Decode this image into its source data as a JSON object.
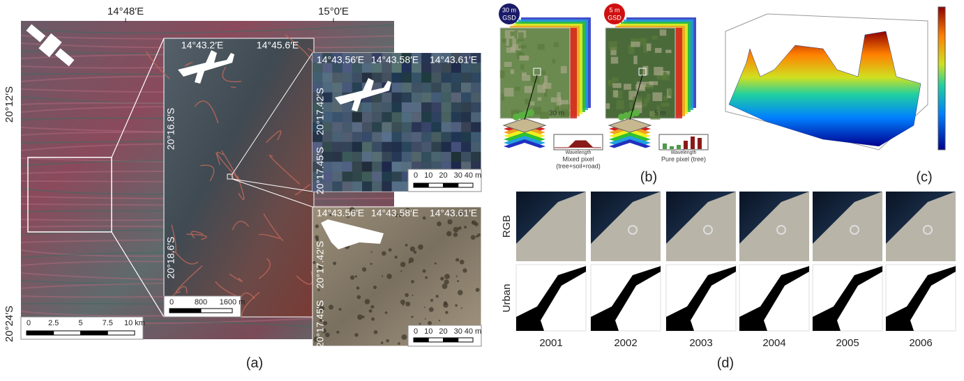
{
  "panels": {
    "a": {
      "label": "(a)",
      "overview": {
        "lon_labels": [
          "14°48′E",
          "15°0′E"
        ],
        "lat_labels": [
          "20°12′S",
          "20°24′S"
        ],
        "scale": [
          "0",
          "2.5",
          "5",
          "7.5",
          "10 km"
        ]
      },
      "inset_airborne": {
        "lon_labels": [
          "14°43.2′E",
          "14°45.6′E"
        ],
        "lat_labels": [
          "20°16.8′S",
          "20°18.6′S"
        ],
        "scale": [
          "0",
          "800",
          "1600 m"
        ]
      },
      "inset_pixels": {
        "lon_labels": [
          "14°43.56′E",
          "14°43.58′E",
          "14°43.61′E"
        ],
        "lat_labels": [
          "20°17.42′S",
          "20°17.45′S"
        ],
        "scale": [
          "0",
          "10",
          "20",
          "30",
          "40 m"
        ]
      },
      "inset_drone": {
        "lon_labels": [
          "14°43.56′E",
          "14°43.58′E",
          "14°43.61′E"
        ],
        "lat_labels": [
          "20°17.42′S",
          "20°17.45′S"
        ],
        "scale": [
          "0",
          "10",
          "20",
          "30",
          "40 m"
        ]
      }
    },
    "b": {
      "label": "(b)",
      "coarse": {
        "gsd": "30 m",
        "gsd_unit": "GSD",
        "pixel_size": "30 m",
        "axis": "Wavelength",
        "caption": [
          "Mixed pixel",
          "(tree+soil+road)"
        ]
      },
      "fine": {
        "gsd": "5 m",
        "gsd_unit": "GSD",
        "pixel_size": "5 m",
        "axis": "Wavelength",
        "caption": [
          "Pure pixel (tree)"
        ]
      }
    },
    "c": {
      "label": "(c)"
    },
    "d": {
      "label": "(d)",
      "rows": [
        "RGB",
        "Urban"
      ],
      "years": [
        "2001",
        "2002",
        "2003",
        "2004",
        "2005",
        "2006"
      ]
    }
  }
}
